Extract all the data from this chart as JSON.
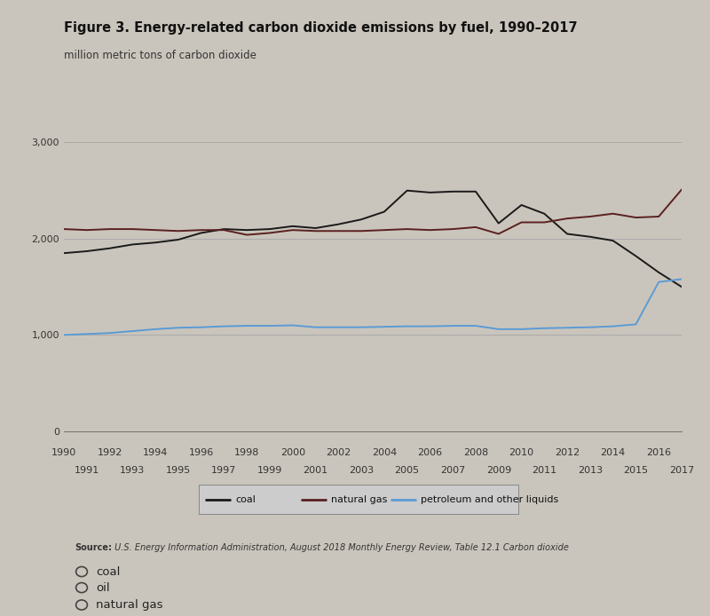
{
  "title": "Figure 3. Energy-related carbon dioxide emissions by fuel, 1990–2017",
  "ylabel": "million metric tons of carbon dioxide",
  "source_bold": "Source:",
  "source_rest": " U.S. Energy Information Administration, August 2018 Monthly Energy Review, Table 12.1 Carbon dioxide",
  "background_color": "#cac5bc",
  "plot_bg_color": "#cac5bc",
  "ylim": [
    0,
    3200
  ],
  "yticks": [
    0,
    1000,
    2000,
    3000
  ],
  "ytick_labels": [
    "0",
    "1,000",
    "2,000",
    "3,000"
  ],
  "years": [
    1990,
    1991,
    1992,
    1993,
    1994,
    1995,
    1996,
    1997,
    1998,
    1999,
    2000,
    2001,
    2002,
    2003,
    2004,
    2005,
    2006,
    2007,
    2008,
    2009,
    2010,
    2011,
    2012,
    2013,
    2014,
    2015,
    2016,
    2017
  ],
  "coal": [
    1850,
    1870,
    1900,
    1940,
    1960,
    1990,
    2060,
    2100,
    2090,
    2100,
    2130,
    2110,
    2150,
    2200,
    2280,
    2500,
    2480,
    2490,
    2490,
    2160,
    2350,
    2260,
    2050,
    2020,
    1980,
    1820,
    1650,
    1500
  ],
  "natural_gas": [
    2100,
    2090,
    2100,
    2100,
    2090,
    2080,
    2090,
    2090,
    2040,
    2060,
    2090,
    2080,
    2080,
    2080,
    2090,
    2100,
    2090,
    2100,
    2120,
    2050,
    2170,
    2170,
    2210,
    2230,
    2260,
    2220,
    2230,
    2510
  ],
  "petroleum": [
    1000,
    1010,
    1020,
    1040,
    1060,
    1075,
    1080,
    1090,
    1095,
    1095,
    1100,
    1080,
    1080,
    1080,
    1085,
    1090,
    1090,
    1095,
    1095,
    1060,
    1060,
    1070,
    1075,
    1080,
    1090,
    1110,
    1550,
    1580
  ],
  "coal_color": "#1a1a1a",
  "natural_gas_color": "#5a2020",
  "petroleum_color": "#5b9bd5",
  "grid_color": "#aaaaaa",
  "title_fontsize": 10.5,
  "subtitle_fontsize": 8.5,
  "tick_fontsize": 8,
  "source_fontsize": 7,
  "legend_fontsize": 8
}
